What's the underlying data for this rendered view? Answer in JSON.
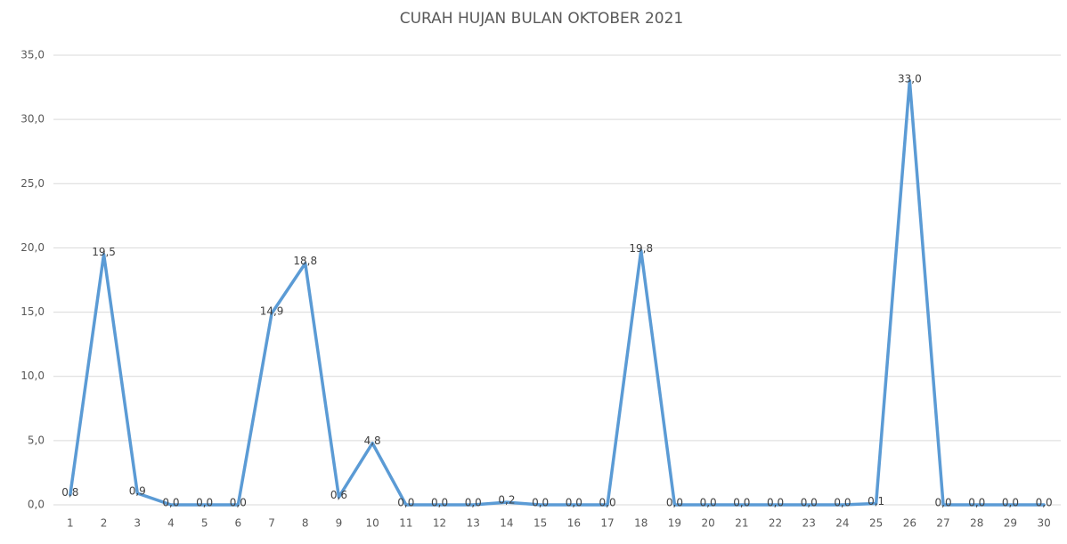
{
  "chart_data": {
    "type": "line",
    "title": "CURAH HUJAN BULAN OKTOBER 2021",
    "categories": [
      "1",
      "2",
      "3",
      "4",
      "5",
      "6",
      "7",
      "8",
      "9",
      "10",
      "11",
      "12",
      "13",
      "14",
      "15",
      "16",
      "17",
      "18",
      "19",
      "20",
      "21",
      "22",
      "23",
      "24",
      "25",
      "26",
      "27",
      "28",
      "29",
      "30"
    ],
    "values": [
      0.8,
      19.5,
      0.9,
      0,
      0,
      0,
      14.9,
      18.8,
      0.6,
      4.8,
      0,
      0,
      0,
      0.2,
      0,
      0,
      0,
      19.8,
      0,
      0,
      0,
      0,
      0,
      0,
      0.1,
      33.0,
      0,
      0,
      0,
      0
    ],
    "value_labels": [
      "0,8",
      "19,5",
      "0,9",
      "0,0",
      "0,0",
      "0,0",
      "14,9",
      "18,8",
      "0,6",
      "4,8",
      "0,0",
      "0,0",
      "0,0",
      "0,2",
      "0,0",
      "0,0",
      "0,0",
      "19,8",
      "0,0",
      "0,0",
      "0,0",
      "0,0",
      "0,0",
      "0,0",
      "0,1",
      "33,0",
      "0,0",
      "0,0",
      "0,0",
      "0,0"
    ],
    "color": "#5b9bd5",
    "ylim": [
      0,
      35
    ],
    "yticks": [
      {
        "value": 0,
        "label": "0,0"
      },
      {
        "value": 5,
        "label": "5,0"
      },
      {
        "value": 10,
        "label": "10,0"
      },
      {
        "value": 15,
        "label": "15,0"
      },
      {
        "value": 20,
        "label": "20,0"
      },
      {
        "value": 25,
        "label": "25,0"
      },
      {
        "value": 30,
        "label": "30,0"
      },
      {
        "value": 35,
        "label": "35,0"
      }
    ],
    "grid": true
  }
}
